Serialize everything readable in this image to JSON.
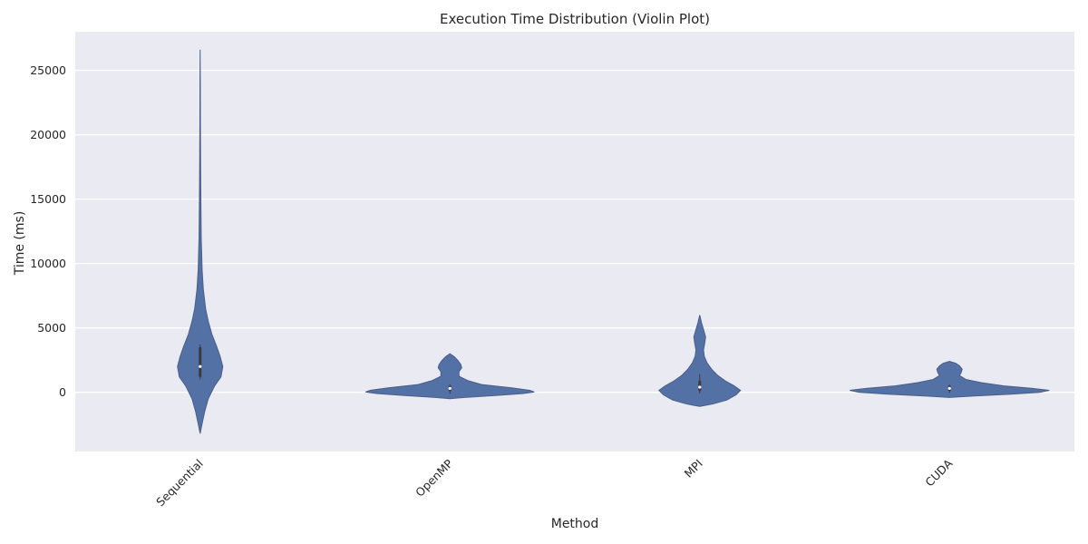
{
  "chart_data": {
    "type": "violin",
    "title": "Execution Time Distribution (Violin Plot)",
    "xlabel": "Method",
    "ylabel": "Time (ms)",
    "ylim": [
      -4600,
      28000
    ],
    "y_ticks": [
      0,
      5000,
      10000,
      15000,
      20000,
      25000
    ],
    "grid": true,
    "categories": [
      "Sequential",
      "OpenMP",
      "MPI",
      "CUDA"
    ],
    "colors": {
      "plot_bg": "#eaeaf2",
      "violin": "#5471a6",
      "grid": "#ffffff"
    },
    "series": [
      {
        "category": "Sequential",
        "min": -3200,
        "max": 26600,
        "q1": 1200,
        "median": 2000,
        "q3": 3500,
        "whisker_low": 1000,
        "whisker_high": 3700,
        "profile": [
          [
            -3200,
            0.0
          ],
          [
            -2500,
            2
          ],
          [
            -1500,
            5
          ],
          [
            -500,
            9
          ],
          [
            500,
            16
          ],
          [
            1200,
            23
          ],
          [
            2000,
            25
          ],
          [
            2800,
            22
          ],
          [
            3600,
            18
          ],
          [
            4500,
            13
          ],
          [
            5500,
            9
          ],
          [
            6500,
            6
          ],
          [
            8000,
            3.5
          ],
          [
            9500,
            2.2
          ],
          [
            12000,
            1.2
          ],
          [
            15000,
            0.8
          ],
          [
            18000,
            0.5
          ],
          [
            21000,
            0.3
          ],
          [
            24000,
            0.2
          ],
          [
            26600,
            0.0
          ]
        ]
      },
      {
        "category": "OpenMP",
        "min": -500,
        "max": 3000,
        "q1": 100,
        "median": 300,
        "q3": 500,
        "whisker_low": -100,
        "whisker_high": 600,
        "profile": [
          [
            -500,
            0.0
          ],
          [
            -400,
            16
          ],
          [
            -250,
            50
          ],
          [
            -100,
            80
          ],
          [
            20,
            93
          ],
          [
            150,
            88
          ],
          [
            350,
            68
          ],
          [
            600,
            35
          ],
          [
            900,
            20
          ],
          [
            1250,
            10
          ],
          [
            1600,
            10
          ],
          [
            1900,
            13
          ],
          [
            2150,
            12
          ],
          [
            2450,
            9
          ],
          [
            2750,
            5
          ],
          [
            3000,
            0.0
          ]
        ]
      },
      {
        "category": "MPI",
        "min": -1100,
        "max": 6000,
        "q1": 100,
        "median": 400,
        "q3": 900,
        "whisker_low": -100,
        "whisker_high": 1400,
        "profile": [
          [
            -1100,
            0.0
          ],
          [
            -900,
            15
          ],
          [
            -600,
            30
          ],
          [
            -200,
            40
          ],
          [
            150,
            45
          ],
          [
            500,
            38
          ],
          [
            900,
            28
          ],
          [
            1300,
            20
          ],
          [
            1800,
            13
          ],
          [
            2300,
            8
          ],
          [
            2800,
            5
          ],
          [
            3300,
            4.2
          ],
          [
            3800,
            5.5
          ],
          [
            4300,
            6.5
          ],
          [
            4800,
            4.5
          ],
          [
            5400,
            2
          ],
          [
            6000,
            0.0
          ]
        ]
      },
      {
        "category": "CUDA",
        "min": -400,
        "max": 2400,
        "q1": 100,
        "median": 300,
        "q3": 500,
        "whisker_low": -50,
        "whisker_high": 600,
        "profile": [
          [
            -400,
            0.0
          ],
          [
            -300,
            25
          ],
          [
            -150,
            68
          ],
          [
            0,
            100
          ],
          [
            150,
            110
          ],
          [
            300,
            92
          ],
          [
            500,
            60
          ],
          [
            750,
            35
          ],
          [
            1000,
            18
          ],
          [
            1300,
            11
          ],
          [
            1550,
            13
          ],
          [
            1800,
            14
          ],
          [
            2050,
            11
          ],
          [
            2250,
            7
          ],
          [
            2400,
            0.0
          ]
        ]
      }
    ]
  }
}
